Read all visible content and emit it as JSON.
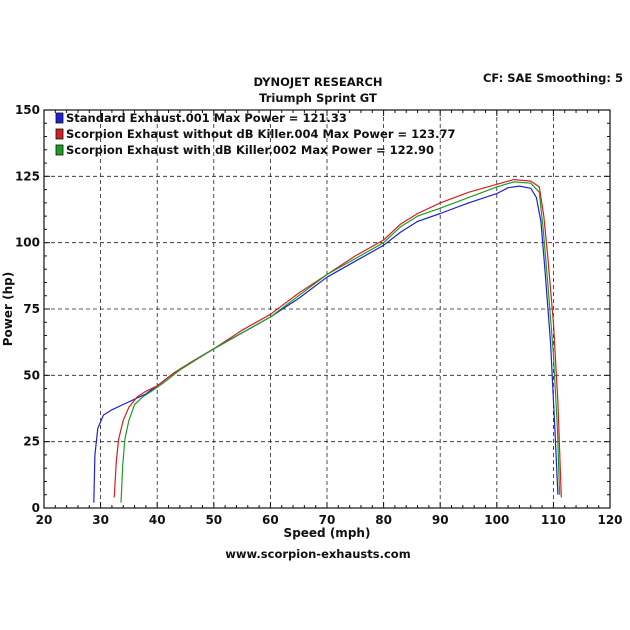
{
  "header": {
    "title": "DYNOJET RESEARCH",
    "subtitle": "Triumph Sprint GT",
    "settings": "CF: SAE  Smoothing: 5"
  },
  "footer": {
    "url": "www.scorpion-exhausts.com"
  },
  "chart_data": {
    "type": "line",
    "xlabel": "Speed (mph)",
    "ylabel": "Power (hp)",
    "xlim": [
      20,
      120
    ],
    "ylim": [
      0,
      150
    ],
    "x_ticks": [
      20,
      30,
      40,
      50,
      60,
      70,
      80,
      90,
      100,
      110,
      120
    ],
    "y_ticks": [
      0,
      25,
      50,
      75,
      100,
      125,
      150
    ],
    "grid": true,
    "legend_position": "top-left",
    "series": [
      {
        "name": "Standard Exhaust.001 Max Power = 121.33",
        "color": "#1f1fd6",
        "points": [
          [
            28.8,
            2
          ],
          [
            29.0,
            20
          ],
          [
            29.5,
            30
          ],
          [
            30.5,
            35
          ],
          [
            32,
            37
          ],
          [
            34,
            39
          ],
          [
            36,
            41
          ],
          [
            38,
            43
          ],
          [
            40,
            46
          ],
          [
            43,
            51
          ],
          [
            46,
            55
          ],
          [
            50,
            60
          ],
          [
            55,
            66
          ],
          [
            60,
            72
          ],
          [
            65,
            79
          ],
          [
            70,
            87
          ],
          [
            75,
            93
          ],
          [
            80,
            99
          ],
          [
            83,
            104
          ],
          [
            86,
            108
          ],
          [
            90,
            111
          ],
          [
            95,
            115
          ],
          [
            100,
            118.5
          ],
          [
            102,
            120.7
          ],
          [
            104,
            121.33
          ],
          [
            106,
            120.5
          ],
          [
            107,
            117
          ],
          [
            107.8,
            108
          ],
          [
            108.5,
            90
          ],
          [
            109.5,
            62
          ],
          [
            110.3,
            28
          ],
          [
            110.8,
            5
          ]
        ]
      },
      {
        "name": "Scorpion Exhaust without dB Killer.004 Max Power = 123.77",
        "color": "#d42020",
        "points": [
          [
            32.4,
            4
          ],
          [
            32.8,
            18
          ],
          [
            33.2,
            26
          ],
          [
            34,
            33
          ],
          [
            35,
            38
          ],
          [
            36.5,
            42
          ],
          [
            38,
            44
          ],
          [
            40,
            46
          ],
          [
            43,
            51
          ],
          [
            46,
            55
          ],
          [
            50,
            60
          ],
          [
            55,
            67
          ],
          [
            60,
            73
          ],
          [
            65,
            81
          ],
          [
            70,
            88
          ],
          [
            75,
            95
          ],
          [
            80,
            101
          ],
          [
            83,
            107
          ],
          [
            86,
            111
          ],
          [
            90,
            115
          ],
          [
            95,
            119
          ],
          [
            100,
            122
          ],
          [
            103,
            123.77
          ],
          [
            106,
            123.2
          ],
          [
            107.5,
            121
          ],
          [
            108.3,
            110
          ],
          [
            109,
            95
          ],
          [
            110,
            70
          ],
          [
            110.8,
            40
          ],
          [
            111.4,
            4
          ]
        ]
      },
      {
        "name": "Scorpion Exhaust with dB Killer.002 Max Power = 122.90",
        "color": "#1e9e1e",
        "points": [
          [
            33.6,
            2
          ],
          [
            33.9,
            16
          ],
          [
            34.3,
            26
          ],
          [
            35,
            33
          ],
          [
            36,
            39
          ],
          [
            37.5,
            42
          ],
          [
            39,
            44
          ],
          [
            41,
            47
          ],
          [
            44,
            52
          ],
          [
            47,
            56
          ],
          [
            50,
            60
          ],
          [
            55,
            66
          ],
          [
            60,
            72
          ],
          [
            65,
            80
          ],
          [
            70,
            88
          ],
          [
            75,
            94
          ],
          [
            80,
            100
          ],
          [
            83,
            106
          ],
          [
            86,
            110
          ],
          [
            90,
            113
          ],
          [
            95,
            117
          ],
          [
            100,
            121
          ],
          [
            103,
            122.9
          ],
          [
            106,
            122.4
          ],
          [
            107.5,
            119
          ],
          [
            108.2,
            105
          ],
          [
            109,
            85
          ],
          [
            110,
            58
          ],
          [
            110.7,
            30
          ],
          [
            111.1,
            5
          ]
        ]
      }
    ]
  }
}
